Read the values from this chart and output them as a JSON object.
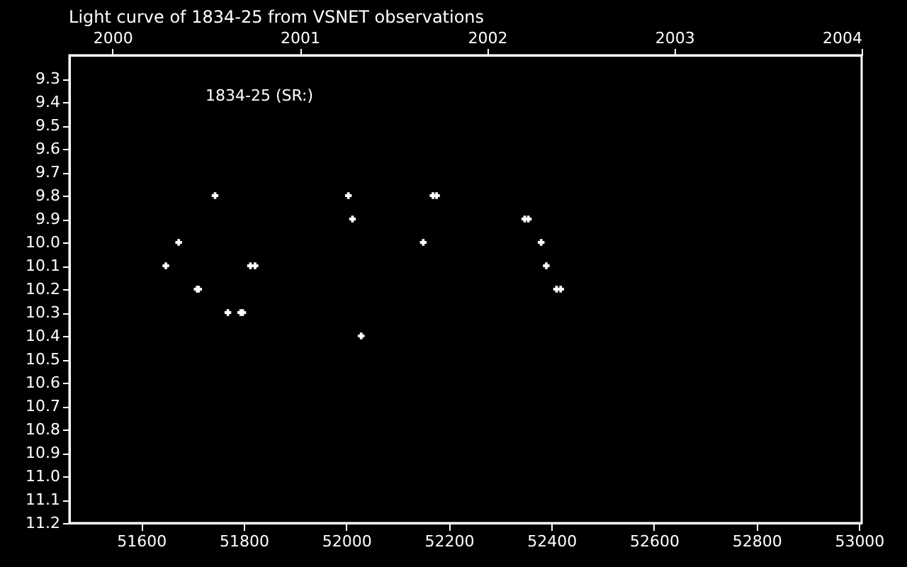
{
  "chart_data": {
    "type": "scatter",
    "title": "Light curve of 1834-25 from VSNET observations",
    "annotations": [
      "1834-25 (SR:)"
    ],
    "x": [
      51648,
      51673,
      51709,
      51712,
      51744,
      51769,
      51794,
      51798,
      51813,
      51822,
      52004,
      52012,
      52029,
      52150,
      52169,
      52176,
      52348,
      52355,
      52380,
      52390,
      52410,
      52418
    ],
    "series": [
      {
        "color": "#ffffff",
        "values": [
          10.1,
          10.0,
          10.2,
          10.2,
          9.8,
          10.3,
          10.3,
          10.3,
          10.1,
          10.1,
          9.8,
          9.9,
          10.4,
          10.0,
          9.8,
          9.8,
          9.9,
          9.9,
          10.0,
          10.1,
          10.2,
          10.2
        ]
      }
    ],
    "xlim": [
      51460,
      53005
    ],
    "xticks": [
      51600,
      51800,
      52000,
      52200,
      52400,
      52600,
      52800,
      53000
    ],
    "x2lim": [
      1999.77,
      2004.0
    ],
    "x2ticks": [
      2000,
      2001,
      2002,
      2003,
      2004
    ],
    "ylim": [
      11.2,
      9.2
    ],
    "yticks": [
      9.3,
      9.4,
      9.5,
      9.6,
      9.7,
      9.8,
      9.9,
      {
        "value": 10.0,
        "label": "10.0"
      },
      10.1,
      10.2,
      10.3,
      10.4,
      10.5,
      10.6,
      10.7,
      10.8,
      10.9,
      {
        "value": 11.0,
        "label": "11.0"
      },
      11.1,
      11.2
    ],
    "marker": "cross",
    "grid": false
  }
}
